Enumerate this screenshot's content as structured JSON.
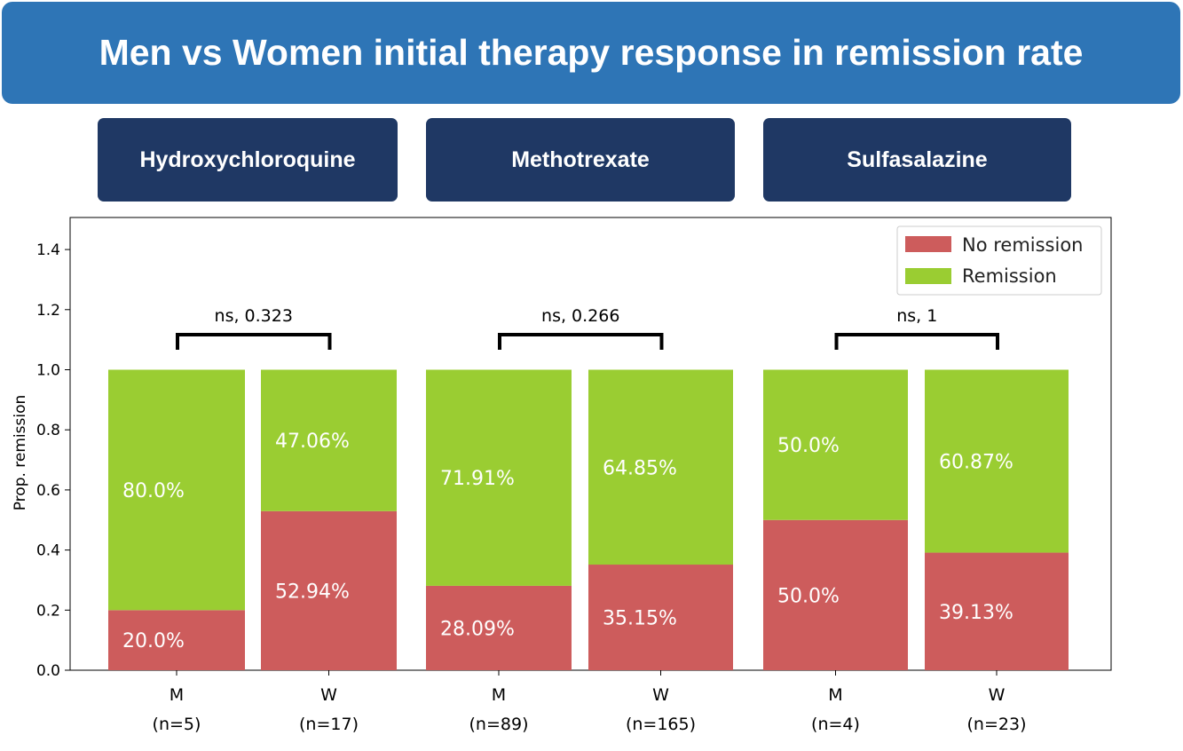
{
  "header": {
    "title": "Men vs Women initial therapy response in remission rate"
  },
  "drugs": [
    {
      "label": "Hydroxychloroquine"
    },
    {
      "label": "Methotrexate"
    },
    {
      "label": "Sulfasalazine"
    }
  ],
  "chart_data": {
    "type": "bar",
    "stacked": true,
    "ylabel": "Prop. remission",
    "ylim": [
      0,
      1.5
    ],
    "yticks": [
      "0.0",
      "0.2",
      "0.4",
      "0.6",
      "0.8",
      "1.0",
      "1.2",
      "1.4"
    ],
    "categories": [
      "M\n(n=5)",
      "W\n(n=17)",
      "M\n(n=89)",
      "W\n(n=165)",
      "M\n(n=4)",
      "W\n(n=23)"
    ],
    "category_lines": [
      [
        "M",
        "(n=5)"
      ],
      [
        "W",
        "(n=17)"
      ],
      [
        "M",
        "(n=89)"
      ],
      [
        "W",
        "(n=165)"
      ],
      [
        "M",
        "(n=4)"
      ],
      [
        "W",
        "(n=23)"
      ]
    ],
    "series": [
      {
        "name": "No remission",
        "color": "#cd5c5c",
        "values": [
          0.2,
          0.5294,
          0.2809,
          0.3515,
          0.5,
          0.3913
        ],
        "labels": [
          "20.0%",
          "52.94%",
          "28.09%",
          "35.15%",
          "50.0%",
          "39.13%"
        ]
      },
      {
        "name": "Remission",
        "color": "#9acd32",
        "values": [
          0.8,
          0.4706,
          0.7191,
          0.6485,
          0.5,
          0.6087
        ],
        "labels": [
          "80.0%",
          "47.06%",
          "71.91%",
          "64.85%",
          "50.0%",
          "60.87%"
        ]
      }
    ],
    "comparisons": [
      {
        "label": "ns, 0.323"
      },
      {
        "label": "ns, 0.266"
      },
      {
        "label": "ns, 1"
      }
    ],
    "legend_position": "top-right",
    "grid": false
  }
}
